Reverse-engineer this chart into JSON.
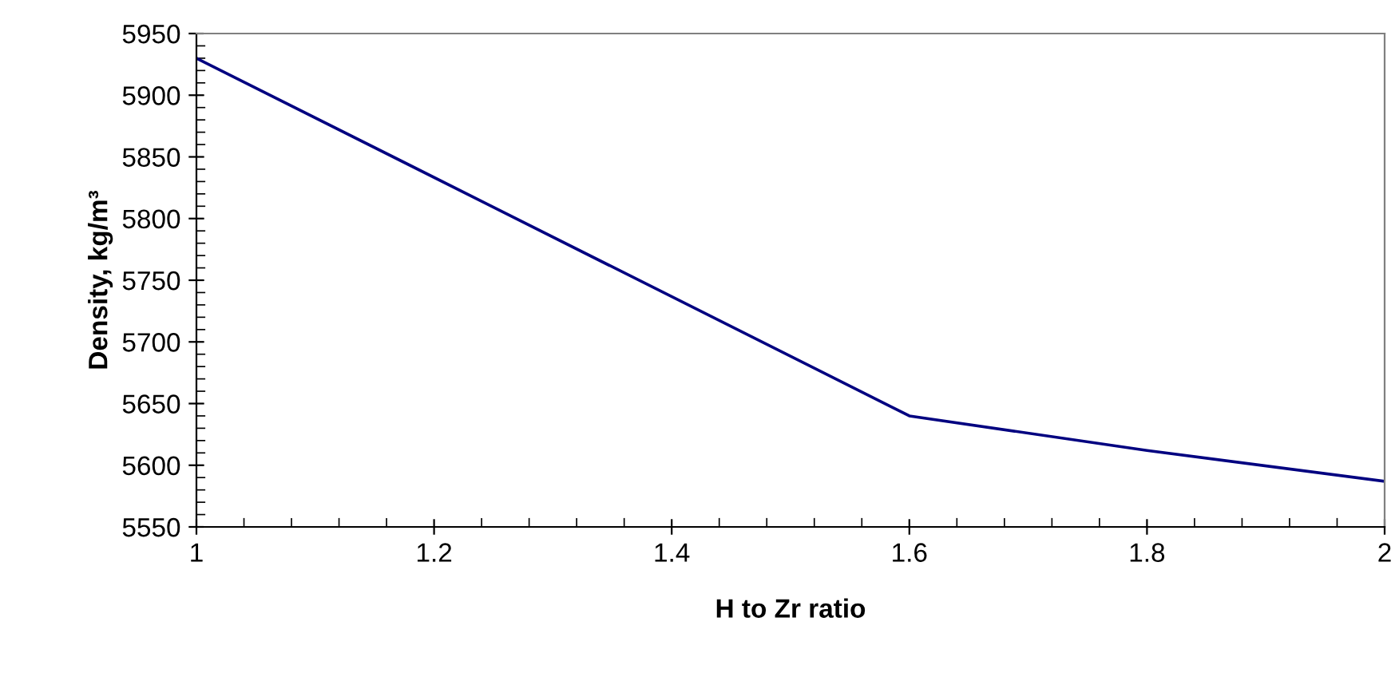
{
  "chart_data": {
    "type": "line",
    "xlabel": "H to Zr ratio",
    "ylabel": "Density, kg/m³",
    "x": [
      1,
      1.6,
      1.8,
      2
    ],
    "series": [
      {
        "color": "#000080",
        "values": [
          5930,
          5640,
          5612,
          5587
        ]
      }
    ],
    "xlim": [
      1,
      2
    ],
    "xticks": [
      {
        "value": 1,
        "label": "1"
      },
      1.2,
      1.4,
      1.6,
      1.8,
      {
        "value": 2,
        "label": "2"
      }
    ],
    "ylim": [
      5550,
      5950
    ],
    "yticks": [
      5550,
      5600,
      5650,
      5700,
      5750,
      5800,
      5850,
      5900,
      5950
    ],
    "grid": false,
    "legend": false,
    "marker": "none",
    "line_style": "solid"
  }
}
